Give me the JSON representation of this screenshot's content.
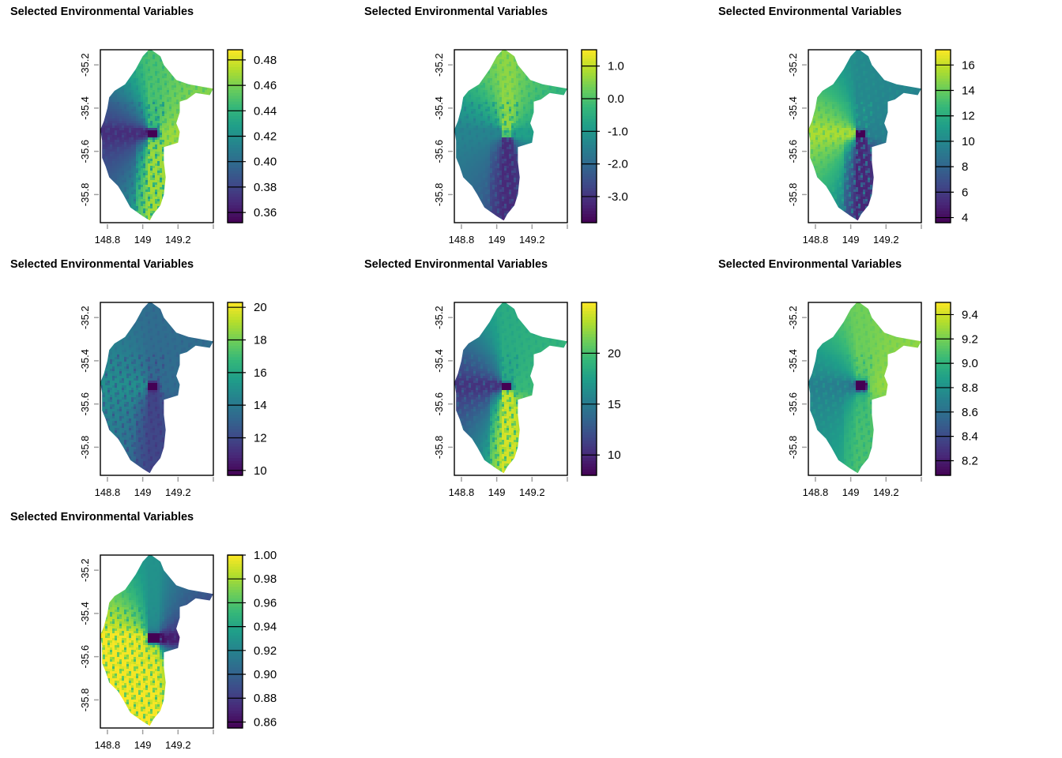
{
  "chart_data": [
    {
      "type": "heatmap",
      "title": "Selected Environmental Variables",
      "xlabel": "",
      "ylabel": "",
      "x_ticks": [
        "148.8",
        "149",
        "149.2"
      ],
      "y_ticks": [
        "-35.2",
        "-35.4",
        "-35.6",
        "-35.8"
      ],
      "xlim": [
        148.76,
        149.4
      ],
      "ylim": [
        -35.93,
        -35.13
      ],
      "legend": {
        "min": 0.352,
        "max": 0.488,
        "ticks": [
          "0.48",
          "0.46",
          "0.44",
          "0.42",
          "0.40",
          "0.38",
          "0.36"
        ],
        "tick_values": [
          0.48,
          0.46,
          0.44,
          0.42,
          0.4,
          0.38,
          0.36
        ]
      },
      "pattern": {
        "north": 0.45,
        "south": 0.47,
        "west": 0.37,
        "east": 0.47,
        "ridges": 0.39
      }
    },
    {
      "type": "heatmap",
      "title": "Selected Environmental Variables",
      "xlabel": "",
      "ylabel": "",
      "x_ticks": [
        "148.8",
        "149",
        "149.2"
      ],
      "y_ticks": [
        "-35.2",
        "-35.4",
        "-35.6",
        "-35.8"
      ],
      "xlim": [
        148.76,
        149.4
      ],
      "ylim": [
        -35.93,
        -35.13
      ],
      "legend": {
        "min": -3.8,
        "max": 1.5,
        "ticks": [
          "1.0",
          "0.0",
          "-1.0",
          "-2.0",
          "-3.0"
        ],
        "tick_values": [
          1.0,
          0.0,
          -1.0,
          -2.0,
          -3.0
        ]
      },
      "pattern": {
        "north": 0.6,
        "south": -3.2,
        "west": -1.4,
        "east": -0.8,
        "ridges": -1.8
      }
    },
    {
      "type": "heatmap",
      "title": "Selected Environmental Variables",
      "xlabel": "",
      "ylabel": "",
      "x_ticks": [
        "148.8",
        "149",
        "149.2"
      ],
      "y_ticks": [
        "-35.2",
        "-35.4",
        "-35.6",
        "-35.8"
      ],
      "xlim": [
        148.76,
        149.4
      ],
      "ylim": [
        -35.93,
        -35.13
      ],
      "legend": {
        "min": 3.6,
        "max": 17.2,
        "ticks": [
          "16",
          "14",
          "12",
          "10",
          "8",
          "6",
          "4"
        ],
        "tick_values": [
          16,
          14,
          12,
          10,
          8,
          6,
          4
        ]
      },
      "pattern": {
        "north": 10.0,
        "south": 5.0,
        "west": 15.5,
        "east": 9.5,
        "ridges": 12.5
      }
    },
    {
      "type": "heatmap",
      "title": "Selected Environmental Variables",
      "xlabel": "",
      "ylabel": "",
      "x_ticks": [
        "148.8",
        "149",
        "149.2"
      ],
      "y_ticks": [
        "-35.2",
        "-35.4",
        "-35.6",
        "-35.8"
      ],
      "xlim": [
        148.76,
        149.4
      ],
      "ylim": [
        -35.93,
        -35.13
      ],
      "legend": {
        "min": 9.7,
        "max": 20.3,
        "ticks": [
          "20",
          "18",
          "16",
          "14",
          "12",
          "10"
        ],
        "tick_values": [
          20,
          18,
          16,
          14,
          12,
          10
        ]
      },
      "pattern": {
        "north": 13.5,
        "south": 12.0,
        "west": 15.0,
        "east": 13.5,
        "ridges": 11.0
      }
    },
    {
      "type": "heatmap",
      "title": "Selected Environmental Variables",
      "xlabel": "",
      "ylabel": "",
      "x_ticks": [
        "148.8",
        "149",
        "149.2"
      ],
      "y_ticks": [
        "-35.2",
        "-35.4",
        "-35.6",
        "-35.8"
      ],
      "xlim": [
        148.76,
        149.4
      ],
      "ylim": [
        -35.93,
        -35.13
      ],
      "legend": {
        "min": 8.0,
        "max": 25.0,
        "ticks": [
          "20",
          "15",
          "10"
        ],
        "tick_values": [
          20,
          15,
          10
        ]
      },
      "pattern": {
        "north": 18.5,
        "south": 24.0,
        "west": 10.5,
        "east": 19.5,
        "ridges": 15.0
      }
    },
    {
      "type": "heatmap",
      "title": "Selected Environmental Variables",
      "xlabel": "",
      "ylabel": "",
      "x_ticks": [
        "148.8",
        "149",
        "149.2"
      ],
      "y_ticks": [
        "-35.2",
        "-35.4",
        "-35.6",
        "-35.8"
      ],
      "xlim": [
        148.76,
        149.4
      ],
      "ylim": [
        -35.93,
        -35.13
      ],
      "legend": {
        "min": 8.08,
        "max": 9.5,
        "ticks": [
          "9.4",
          "9.2",
          "9.0",
          "8.8",
          "8.6",
          "8.4",
          "8.2"
        ],
        "tick_values": [
          9.4,
          9.2,
          9.0,
          8.8,
          8.6,
          8.4,
          8.2
        ]
      },
      "pattern": {
        "north": 9.2,
        "south": 9.1,
        "west": 8.7,
        "east": 9.3,
        "ridges": 8.9
      }
    },
    {
      "type": "heatmap",
      "title": "Selected Environmental Variables",
      "xlabel": "",
      "ylabel": "",
      "x_ticks": [
        "148.8",
        "149",
        "149.2"
      ],
      "y_ticks": [
        "-35.2",
        "-35.4",
        "-35.6",
        "-35.8"
      ],
      "xlim": [
        148.76,
        149.4
      ],
      "ylim": [
        -35.93,
        -35.13
      ],
      "legend": {
        "min": 0.855,
        "max": 1.0,
        "ticks": [
          "1.00",
          "0.98",
          "0.96",
          "0.94",
          "0.92",
          "0.90",
          "0.88",
          "0.86"
        ],
        "tick_values": [
          1.0,
          0.98,
          0.96,
          0.94,
          0.92,
          0.9,
          0.88,
          0.86
        ]
      },
      "pattern": {
        "north": 0.93,
        "south": 1.0,
        "west": 1.0,
        "east": 0.87,
        "ridges": 0.92
      }
    }
  ],
  "colors": {
    "viridis": [
      "#440154",
      "#482878",
      "#3e4a89",
      "#31688e",
      "#26828e",
      "#1f9e89",
      "#35b779",
      "#6ece58",
      "#b5de2b",
      "#fde725"
    ],
    "tick_gray": "#a0a0a0",
    "frame": "#000000"
  }
}
